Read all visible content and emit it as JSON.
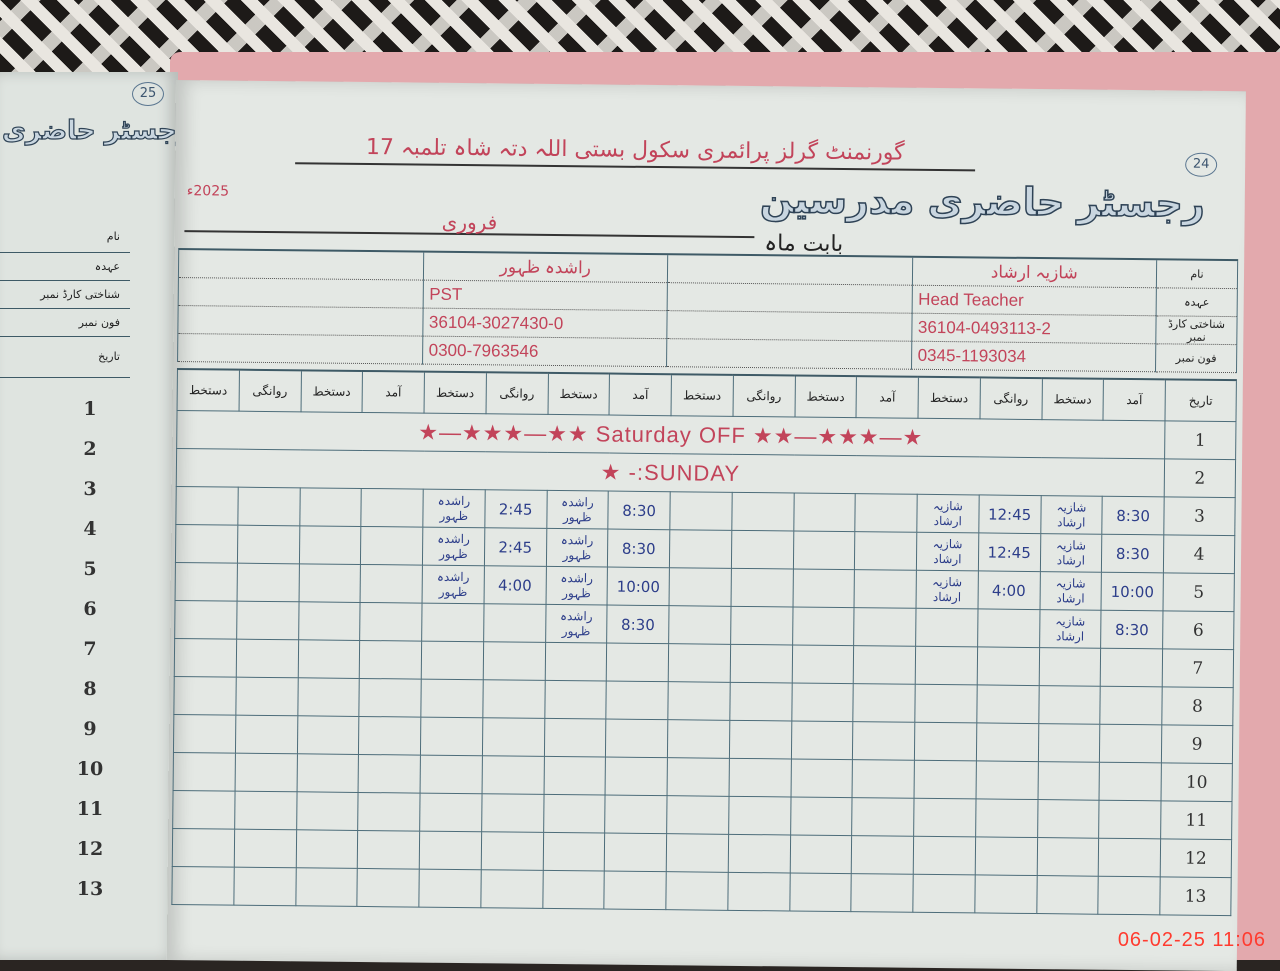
{
  "left_page": {
    "page_number": "25",
    "title": "رجسٹر حاضری",
    "row_labels": [
      "نام",
      "عہدہ",
      "شناختی کارڈ نمبر",
      "فون نمبر",
      "تاریخ"
    ],
    "dates": [
      "1",
      "2",
      "3",
      "4",
      "5",
      "6",
      "7",
      "8",
      "9",
      "10",
      "11",
      "12",
      "13"
    ]
  },
  "right_page": {
    "page_number": "24",
    "title": "رجسٹر حاضری مدرسین",
    "school_name": "گورنمنٹ گرلز پرائمری سکول بستی اللہ دتہ شاہ تلمبہ 17",
    "month_label": "بابت ماہ",
    "month": "فروری",
    "year": "2025ء",
    "row_labels": {
      "name": "نام",
      "designation": "عہدہ",
      "cnic": "شناختی کارڈ نمبر",
      "phone": "فون نمبر",
      "date": "تاریخ"
    },
    "teachers": [
      {
        "name": "شازیہ ارشاد",
        "designation": "Head Teacher",
        "cnic": "36104-0493113-2",
        "phone": "0345-1193034"
      },
      {
        "name": "",
        "designation": "",
        "cnic": "",
        "phone": ""
      },
      {
        "name": "راشدہ ظہور",
        "designation": "PST",
        "cnic": "36104-3027430-0",
        "phone": "0300-7963546"
      },
      {
        "name": "",
        "designation": "",
        "cnic": "",
        "phone": ""
      }
    ],
    "column_headers": [
      "آمد",
      "دستخط",
      "روانگی",
      "دستخط"
    ],
    "day_notes": {
      "1": "★—★★★—★★ Saturday OFF ★★—★★★—★",
      "2": "SUNDAY:- ★"
    },
    "attendance": [
      {
        "date": "1",
        "cells": []
      },
      {
        "date": "2",
        "cells": []
      },
      {
        "date": "3",
        "cells": [
          "8:30",
          "شازیہ ارشاد",
          "12:45",
          "شازیہ ارشاد",
          "",
          "",
          "",
          "",
          "8:30",
          "راشدہ ظہور",
          "2:45",
          "راشدہ ظہور",
          "",
          "",
          "",
          ""
        ]
      },
      {
        "date": "4",
        "cells": [
          "8:30",
          "شازیہ ارشاد",
          "12:45",
          "شازیہ ارشاد",
          "",
          "",
          "",
          "",
          "8:30",
          "راشدہ ظہور",
          "2:45",
          "راشدہ ظہور",
          "",
          "",
          "",
          ""
        ]
      },
      {
        "date": "5",
        "cells": [
          "10:00",
          "شازیہ ارشاد",
          "4:00",
          "شازیہ ارشاد",
          "",
          "",
          "",
          "",
          "10:00",
          "راشدہ ظہور",
          "4:00",
          "راشدہ ظہور",
          "",
          "",
          "",
          ""
        ]
      },
      {
        "date": "6",
        "cells": [
          "8:30",
          "شازیہ ارشاد",
          "",
          "",
          "",
          "",
          "",
          "",
          "8:30",
          "راشدہ ظہور",
          "",
          "",
          "",
          "",
          "",
          ""
        ]
      },
      {
        "date": "7",
        "cells": []
      },
      {
        "date": "8",
        "cells": []
      },
      {
        "date": "9",
        "cells": []
      },
      {
        "date": "10",
        "cells": []
      },
      {
        "date": "11",
        "cells": []
      },
      {
        "date": "12",
        "cells": []
      },
      {
        "date": "13",
        "cells": []
      }
    ]
  },
  "camera_timestamp": "06-02-25  11:06",
  "colors": {
    "ink_red": "#c2445a",
    "ink_blue": "#2d3e8a",
    "grid": "#4d6d7a",
    "folder": "#e3a9ad",
    "timestamp": "#ff3b2f"
  }
}
